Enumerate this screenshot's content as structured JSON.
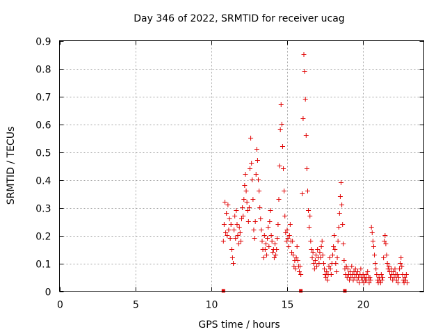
{
  "chart_data": {
    "type": "scatter",
    "title": "Day 346 of 2022, SRMTID for receiver ucag",
    "xlabel": "GPS time / hours",
    "ylabel": "SRMTID / TECUs",
    "xlim": [
      0,
      24
    ],
    "ylim": [
      0,
      0.9
    ],
    "xticks": [
      0,
      5,
      10,
      15,
      20
    ],
    "yticks": [
      0,
      0.1,
      0.2,
      0.3,
      0.4,
      0.5,
      0.6,
      0.7,
      0.8,
      0.9
    ],
    "xtick_labels": [
      "0",
      "5",
      "10",
      "15",
      "20"
    ],
    "ytick_labels": [
      "0",
      "0.1",
      "0.2",
      "0.3",
      "0.4",
      "0.5",
      "0.6",
      "0.7",
      "0.8",
      "0.9"
    ],
    "grid": true,
    "marker": "+",
    "color": "#e00000",
    "baseline_markers": [
      10.8,
      15.9,
      18.8
    ],
    "series": [
      {
        "name": "SRMTID",
        "points": [
          [
            10.8,
            0.18
          ],
          [
            10.85,
            0.24
          ],
          [
            10.9,
            0.32
          ],
          [
            10.95,
            0.21
          ],
          [
            11.0,
            0.28
          ],
          [
            11.05,
            0.2
          ],
          [
            11.1,
            0.31
          ],
          [
            11.15,
            0.22
          ],
          [
            11.2,
            0.26
          ],
          [
            11.25,
            0.19
          ],
          [
            11.3,
            0.24
          ],
          [
            11.35,
            0.15
          ],
          [
            11.4,
            0.12
          ],
          [
            11.45,
            0.1
          ],
          [
            11.5,
            0.22
          ],
          [
            11.55,
            0.27
          ],
          [
            11.6,
            0.19
          ],
          [
            11.65,
            0.29
          ],
          [
            11.7,
            0.24
          ],
          [
            11.75,
            0.2
          ],
          [
            11.8,
            0.17
          ],
          [
            11.85,
            0.23
          ],
          [
            11.9,
            0.21
          ],
          [
            11.95,
            0.18
          ],
          [
            12.0,
            0.26
          ],
          [
            12.05,
            0.3
          ],
          [
            12.1,
            0.27
          ],
          [
            12.15,
            0.33
          ],
          [
            12.2,
            0.38
          ],
          [
            12.25,
            0.42
          ],
          [
            12.3,
            0.36
          ],
          [
            12.35,
            0.32
          ],
          [
            12.4,
            0.29
          ],
          [
            12.45,
            0.25
          ],
          [
            12.5,
            0.3
          ],
          [
            12.55,
            0.44
          ],
          [
            12.6,
            0.55
          ],
          [
            12.65,
            0.46
          ],
          [
            12.7,
            0.4
          ],
          [
            12.75,
            0.33
          ],
          [
            12.8,
            0.22
          ],
          [
            12.85,
            0.19
          ],
          [
            12.9,
            0.25
          ],
          [
            12.95,
            0.42
          ],
          [
            13.0,
            0.51
          ],
          [
            13.05,
            0.47
          ],
          [
            13.1,
            0.4
          ],
          [
            13.15,
            0.36
          ],
          [
            13.2,
            0.3
          ],
          [
            13.25,
            0.26
          ],
          [
            13.3,
            0.22
          ],
          [
            13.35,
            0.18
          ],
          [
            13.4,
            0.15
          ],
          [
            13.45,
            0.12
          ],
          [
            13.5,
            0.2
          ],
          [
            13.55,
            0.15
          ],
          [
            13.6,
            0.17
          ],
          [
            13.65,
            0.13
          ],
          [
            13.7,
            0.19
          ],
          [
            13.75,
            0.23
          ],
          [
            13.8,
            0.16
          ],
          [
            13.85,
            0.25
          ],
          [
            13.9,
            0.29
          ],
          [
            13.95,
            0.2
          ],
          [
            14.0,
            0.18
          ],
          [
            14.05,
            0.14
          ],
          [
            14.1,
            0.15
          ],
          [
            14.15,
            0.12
          ],
          [
            14.2,
            0.17
          ],
          [
            14.25,
            0.13
          ],
          [
            14.3,
            0.15
          ],
          [
            14.35,
            0.19
          ],
          [
            14.4,
            0.24
          ],
          [
            14.45,
            0.33
          ],
          [
            14.5,
            0.45
          ],
          [
            14.55,
            0.58
          ],
          [
            14.6,
            0.67
          ],
          [
            14.65,
            0.6
          ],
          [
            14.7,
            0.52
          ],
          [
            14.75,
            0.44
          ],
          [
            14.8,
            0.36
          ],
          [
            14.85,
            0.27
          ],
          [
            14.9,
            0.21
          ],
          [
            14.95,
            0.18
          ],
          [
            15.0,
            0.22
          ],
          [
            15.05,
            0.19
          ],
          [
            15.1,
            0.16
          ],
          [
            15.15,
            0.2
          ],
          [
            15.2,
            0.24
          ],
          [
            15.25,
            0.18
          ],
          [
            15.3,
            0.14
          ],
          [
            15.35,
            0.18
          ],
          [
            15.4,
            0.13
          ],
          [
            15.45,
            0.09
          ],
          [
            15.5,
            0.11
          ],
          [
            15.55,
            0.08
          ],
          [
            15.6,
            0.12
          ],
          [
            15.65,
            0.16
          ],
          [
            15.7,
            0.11
          ],
          [
            15.75,
            0.09
          ],
          [
            15.8,
            0.07
          ],
          [
            15.85,
            0.09
          ],
          [
            15.9,
            0.06
          ],
          [
            16.0,
            0.35
          ],
          [
            16.05,
            0.62
          ],
          [
            16.1,
            0.85
          ],
          [
            16.15,
            0.79
          ],
          [
            16.2,
            0.69
          ],
          [
            16.25,
            0.56
          ],
          [
            16.3,
            0.44
          ],
          [
            16.35,
            0.36
          ],
          [
            16.4,
            0.29
          ],
          [
            16.45,
            0.23
          ],
          [
            16.5,
            0.27
          ],
          [
            16.55,
            0.18
          ],
          [
            16.6,
            0.15
          ],
          [
            16.65,
            0.12
          ],
          [
            16.7,
            0.14
          ],
          [
            16.75,
            0.1
          ],
          [
            16.8,
            0.08
          ],
          [
            16.85,
            0.11
          ],
          [
            16.9,
            0.13
          ],
          [
            16.95,
            0.09
          ],
          [
            17.0,
            0.15
          ],
          [
            17.05,
            0.12
          ],
          [
            17.1,
            0.1
          ],
          [
            17.15,
            0.14
          ],
          [
            17.2,
            0.12
          ],
          [
            17.25,
            0.16
          ],
          [
            17.3,
            0.18
          ],
          [
            17.35,
            0.13
          ],
          [
            17.4,
            0.1
          ],
          [
            17.45,
            0.08
          ],
          [
            17.5,
            0.06
          ],
          [
            17.55,
            0.05
          ],
          [
            17.6,
            0.07
          ],
          [
            17.65,
            0.04
          ],
          [
            17.7,
            0.06
          ],
          [
            17.75,
            0.09
          ],
          [
            17.8,
            0.12
          ],
          [
            17.85,
            0.08
          ],
          [
            17.9,
            0.06
          ],
          [
            17.95,
            0.1
          ],
          [
            18.0,
            0.13
          ],
          [
            18.05,
            0.16
          ],
          [
            18.1,
            0.2
          ],
          [
            18.15,
            0.15
          ],
          [
            18.2,
            0.1
          ],
          [
            18.25,
            0.07
          ],
          [
            18.3,
            0.12
          ],
          [
            18.35,
            0.18
          ],
          [
            18.4,
            0.23
          ],
          [
            18.45,
            0.28
          ],
          [
            18.5,
            0.34
          ],
          [
            18.55,
            0.39
          ],
          [
            18.6,
            0.31
          ],
          [
            18.65,
            0.24
          ],
          [
            18.7,
            0.17
          ],
          [
            18.75,
            0.11
          ],
          [
            18.8,
            0.08
          ],
          [
            18.85,
            0.06
          ],
          [
            18.9,
            0.09
          ],
          [
            18.95,
            0.05
          ],
          [
            19.0,
            0.08
          ],
          [
            19.05,
            0.06
          ],
          [
            19.1,
            0.04
          ],
          [
            19.15,
            0.07
          ],
          [
            19.2,
            0.05
          ],
          [
            19.25,
            0.09
          ],
          [
            19.3,
            0.06
          ],
          [
            19.35,
            0.04
          ],
          [
            19.4,
            0.07
          ],
          [
            19.45,
            0.05
          ],
          [
            19.5,
            0.08
          ],
          [
            19.55,
            0.06
          ],
          [
            19.6,
            0.04
          ],
          [
            19.65,
            0.07
          ],
          [
            19.7,
            0.05
          ],
          [
            19.75,
            0.03
          ],
          [
            19.8,
            0.06
          ],
          [
            19.85,
            0.08
          ],
          [
            19.9,
            0.05
          ],
          [
            19.95,
            0.04
          ],
          [
            20.0,
            0.06
          ],
          [
            20.05,
            0.03
          ],
          [
            20.1,
            0.05
          ],
          [
            20.15,
            0.04
          ],
          [
            20.2,
            0.06
          ],
          [
            20.25,
            0.04
          ],
          [
            20.3,
            0.07
          ],
          [
            20.35,
            0.05
          ],
          [
            20.4,
            0.03
          ],
          [
            20.45,
            0.05
          ],
          [
            20.5,
            0.04
          ],
          [
            20.55,
            0.23
          ],
          [
            20.6,
            0.21
          ],
          [
            20.65,
            0.18
          ],
          [
            20.7,
            0.16
          ],
          [
            20.75,
            0.13
          ],
          [
            20.8,
            0.1
          ],
          [
            20.85,
            0.08
          ],
          [
            20.9,
            0.06
          ],
          [
            20.95,
            0.04
          ],
          [
            21.0,
            0.03
          ],
          [
            21.05,
            0.05
          ],
          [
            21.1,
            0.04
          ],
          [
            21.15,
            0.03
          ],
          [
            21.2,
            0.06
          ],
          [
            21.25,
            0.04
          ],
          [
            21.3,
            0.05
          ],
          [
            21.35,
            0.12
          ],
          [
            21.4,
            0.18
          ],
          [
            21.45,
            0.2
          ],
          [
            21.5,
            0.17
          ],
          [
            21.55,
            0.13
          ],
          [
            21.6,
            0.1
          ],
          [
            21.65,
            0.08
          ],
          [
            21.7,
            0.09
          ],
          [
            21.75,
            0.07
          ],
          [
            21.8,
            0.05
          ],
          [
            21.85,
            0.08
          ],
          [
            21.9,
            0.06
          ],
          [
            21.95,
            0.04
          ],
          [
            22.0,
            0.07
          ],
          [
            22.05,
            0.05
          ],
          [
            22.1,
            0.08
          ],
          [
            22.15,
            0.06
          ],
          [
            22.2,
            0.04
          ],
          [
            22.25,
            0.06
          ],
          [
            22.3,
            0.03
          ],
          [
            22.35,
            0.05
          ],
          [
            22.4,
            0.08
          ],
          [
            22.45,
            0.1
          ],
          [
            22.5,
            0.12
          ],
          [
            22.55,
            0.09
          ],
          [
            22.6,
            0.06
          ],
          [
            22.65,
            0.04
          ],
          [
            22.7,
            0.03
          ],
          [
            22.75,
            0.05
          ],
          [
            22.8,
            0.04
          ],
          [
            22.85,
            0.06
          ],
          [
            22.9,
            0.03
          ]
        ]
      }
    ]
  }
}
